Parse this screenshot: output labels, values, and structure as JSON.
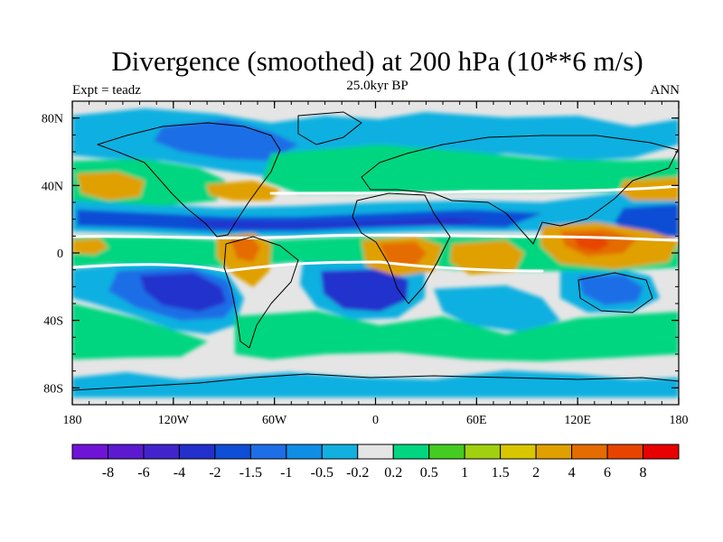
{
  "title": "Divergence (smoothed) at 200 hPa (10**6 m/s)",
  "subtitle": "25.0kyr BP",
  "left_label": "Expt = teadz",
  "right_label": "ANN",
  "map": {
    "projection": "cylindrical equidistant",
    "lon_range": [
      -180,
      180
    ],
    "lat_range": [
      -90,
      90
    ],
    "lat_ticks": [
      {
        "lat": 80,
        "label": "80N"
      },
      {
        "lat": 40,
        "label": "40N"
      },
      {
        "lat": 0,
        "label": "0"
      },
      {
        "lat": -40,
        "label": "40S"
      },
      {
        "lat": -80,
        "label": "80S"
      }
    ],
    "lon_ticks": [
      {
        "lon": -180,
        "label": "180"
      },
      {
        "lon": -120,
        "label": "120W"
      },
      {
        "lon": -60,
        "label": "60W"
      },
      {
        "lon": 0,
        "label": "0"
      },
      {
        "lon": 60,
        "label": "60E"
      },
      {
        "lon": 120,
        "label": "120E"
      },
      {
        "lon": 180,
        "label": "180"
      }
    ],
    "minor_lat_step": 10,
    "minor_lon_step": 10
  },
  "colorbar": {
    "colors": [
      "#6f14d6",
      "#5b1ad0",
      "#4224cc",
      "#2330cc",
      "#0f4ed6",
      "#1e6ee6",
      "#0f8ee6",
      "#11b0e0",
      "#e5e5e5",
      "#00d67f",
      "#44cc22",
      "#a0d010",
      "#d8c700",
      "#e0a000",
      "#e46c00",
      "#e84400",
      "#e80000"
    ],
    "labels": [
      "-8",
      "-6",
      "-4",
      "-2",
      "-1.5",
      "-1",
      "-0.5",
      "-0.2",
      "0.2",
      "0.5",
      "1",
      "1.5",
      "2",
      "4",
      "6",
      "8"
    ]
  },
  "field_colors": {
    "neutral": "#e5e5e5",
    "neg_light": "#11b0e0",
    "neg_mid": "#1e6ee6",
    "neg_strong": "#0f4ed6",
    "neg_max": "#2330cc",
    "pos_light": "#00d67f",
    "pos_mid": "#44cc22",
    "pos_yellow": "#d8c700",
    "pos_orange": "#e0a000",
    "pos_strong": "#e46c00",
    "pos_max": "#e84400"
  }
}
